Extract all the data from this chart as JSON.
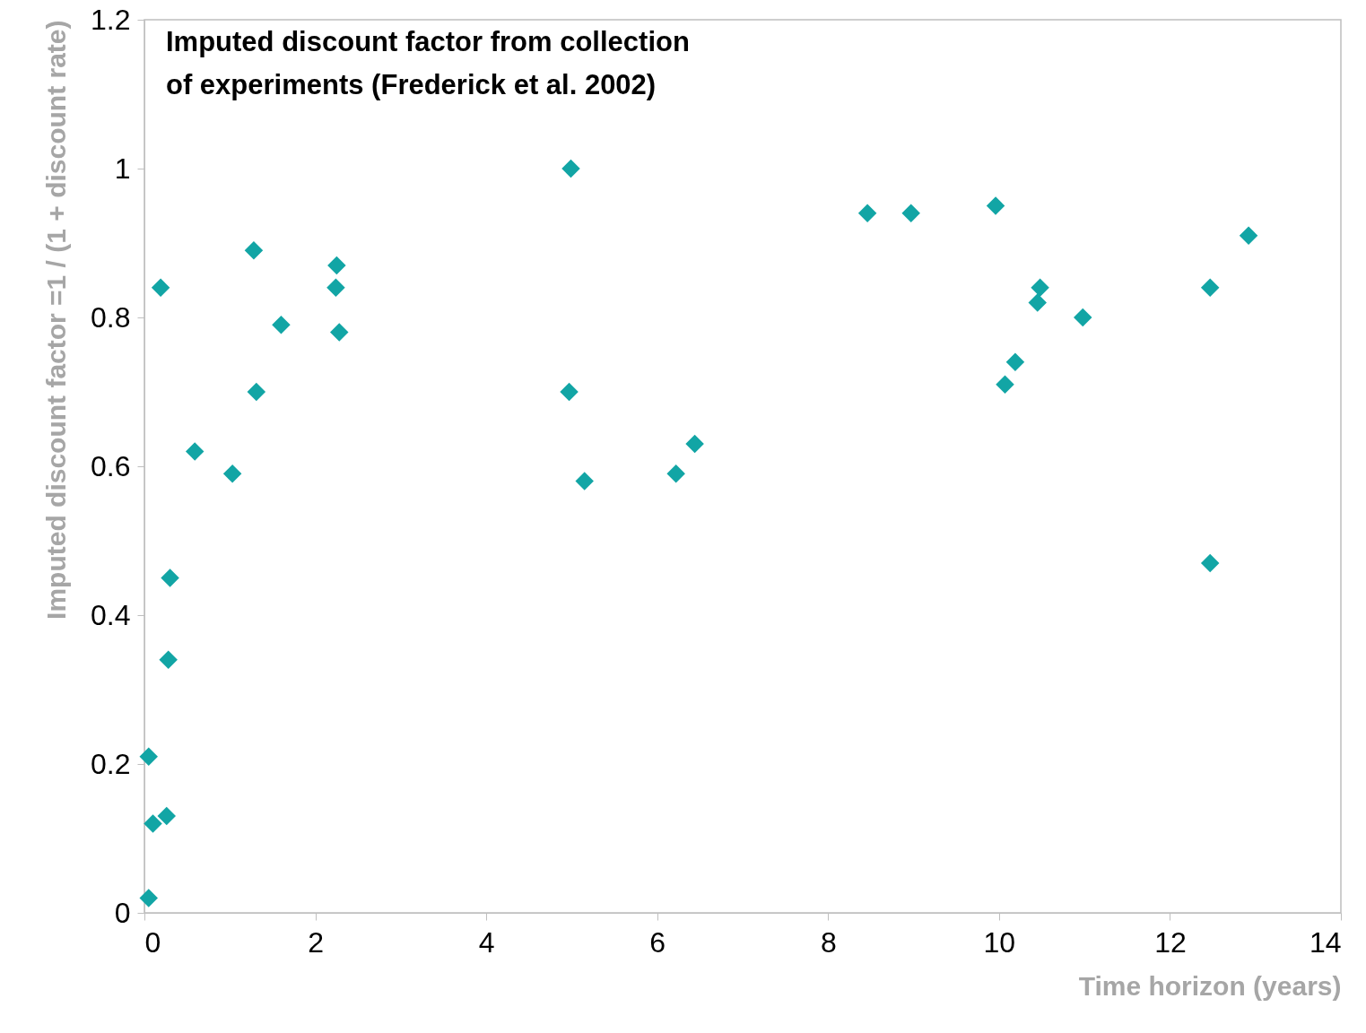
{
  "chart_data": {
    "type": "scatter",
    "title": "Imputed discount factor from collection\nof experiments (Frederick et al. 2002)",
    "xlabel": "Time horizon (years)",
    "ylabel": "Imputed discount factor  =1 / (1 + discount rate)",
    "x": [
      0.05,
      0.05,
      0.1,
      0.26,
      0.28,
      0.3,
      0.19,
      0.59,
      1.03,
      1.28,
      1.31,
      1.6,
      2.25,
      2.24,
      2.28,
      4.99,
      4.97,
      5.15,
      6.22,
      6.44,
      8.46,
      8.97,
      9.96,
      10.19,
      10.07,
      10.48,
      10.45,
      10.98,
      12.47,
      12.47,
      12.92
    ],
    "series": [
      {
        "color": "#12a5a5",
        "values": [
          0.02,
          0.21,
          0.12,
          0.13,
          0.34,
          0.45,
          0.84,
          0.62,
          0.59,
          0.89,
          0.7,
          0.79,
          0.87,
          0.84,
          0.78,
          1.0,
          0.7,
          0.58,
          0.59,
          0.63,
          0.94,
          0.94,
          0.95,
          0.74,
          0.71,
          0.84,
          0.82,
          0.8,
          0.84,
          0.47,
          0.91
        ]
      }
    ],
    "xlim": [
      0,
      14
    ],
    "xticks": [
      0,
      2,
      4,
      6,
      8,
      10,
      12,
      14
    ],
    "ylim": [
      0,
      1.2
    ],
    "yticks": [
      0,
      0.2,
      0.4,
      0.6,
      0.8,
      1,
      1.2
    ],
    "marker": "diamond",
    "grid": false,
    "legend": false
  }
}
